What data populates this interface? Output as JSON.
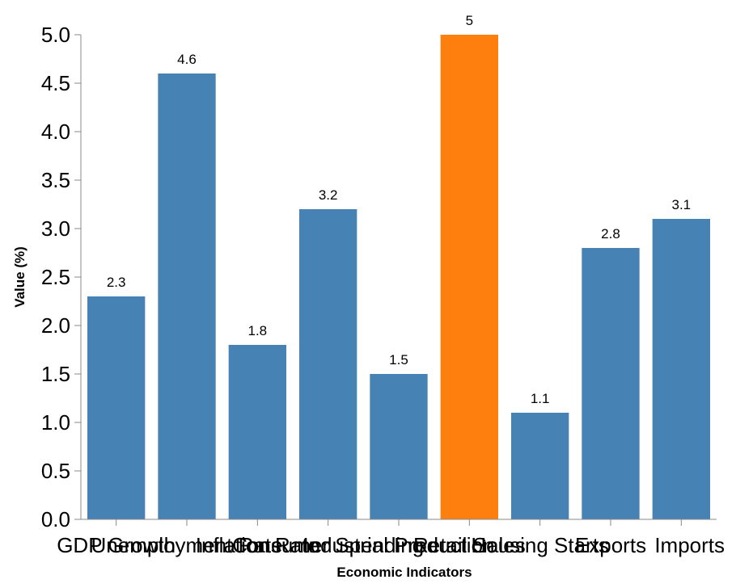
{
  "chart_data": {
    "type": "bar",
    "categories": [
      "GDP Growth",
      "Unemployment Rate",
      "Inflation Rate",
      "Consumer Spending",
      "Industrial Production",
      "Retail Sales",
      "Housing Starts",
      "Exports",
      "Imports"
    ],
    "values": [
      2.3,
      4.6,
      1.8,
      3.2,
      1.5,
      5,
      1.1,
      2.8,
      3.1
    ],
    "value_labels": [
      "2.3",
      "4.6",
      "1.8",
      "3.2",
      "1.5",
      "5",
      "1.1",
      "2.8",
      "3.1"
    ],
    "xlabel": "Economic Indicators",
    "ylabel": "Value (%)",
    "ylim": [
      0,
      5
    ],
    "yticks": [
      "0.0",
      "0.5",
      "1.0",
      "1.5",
      "2.0",
      "2.5",
      "3.0",
      "3.5",
      "4.0",
      "4.5",
      "5.0"
    ],
    "grid": false,
    "colors": {
      "default": "#4682b4",
      "highlight": "#ff7f0e",
      "highlight_index": 5
    }
  }
}
